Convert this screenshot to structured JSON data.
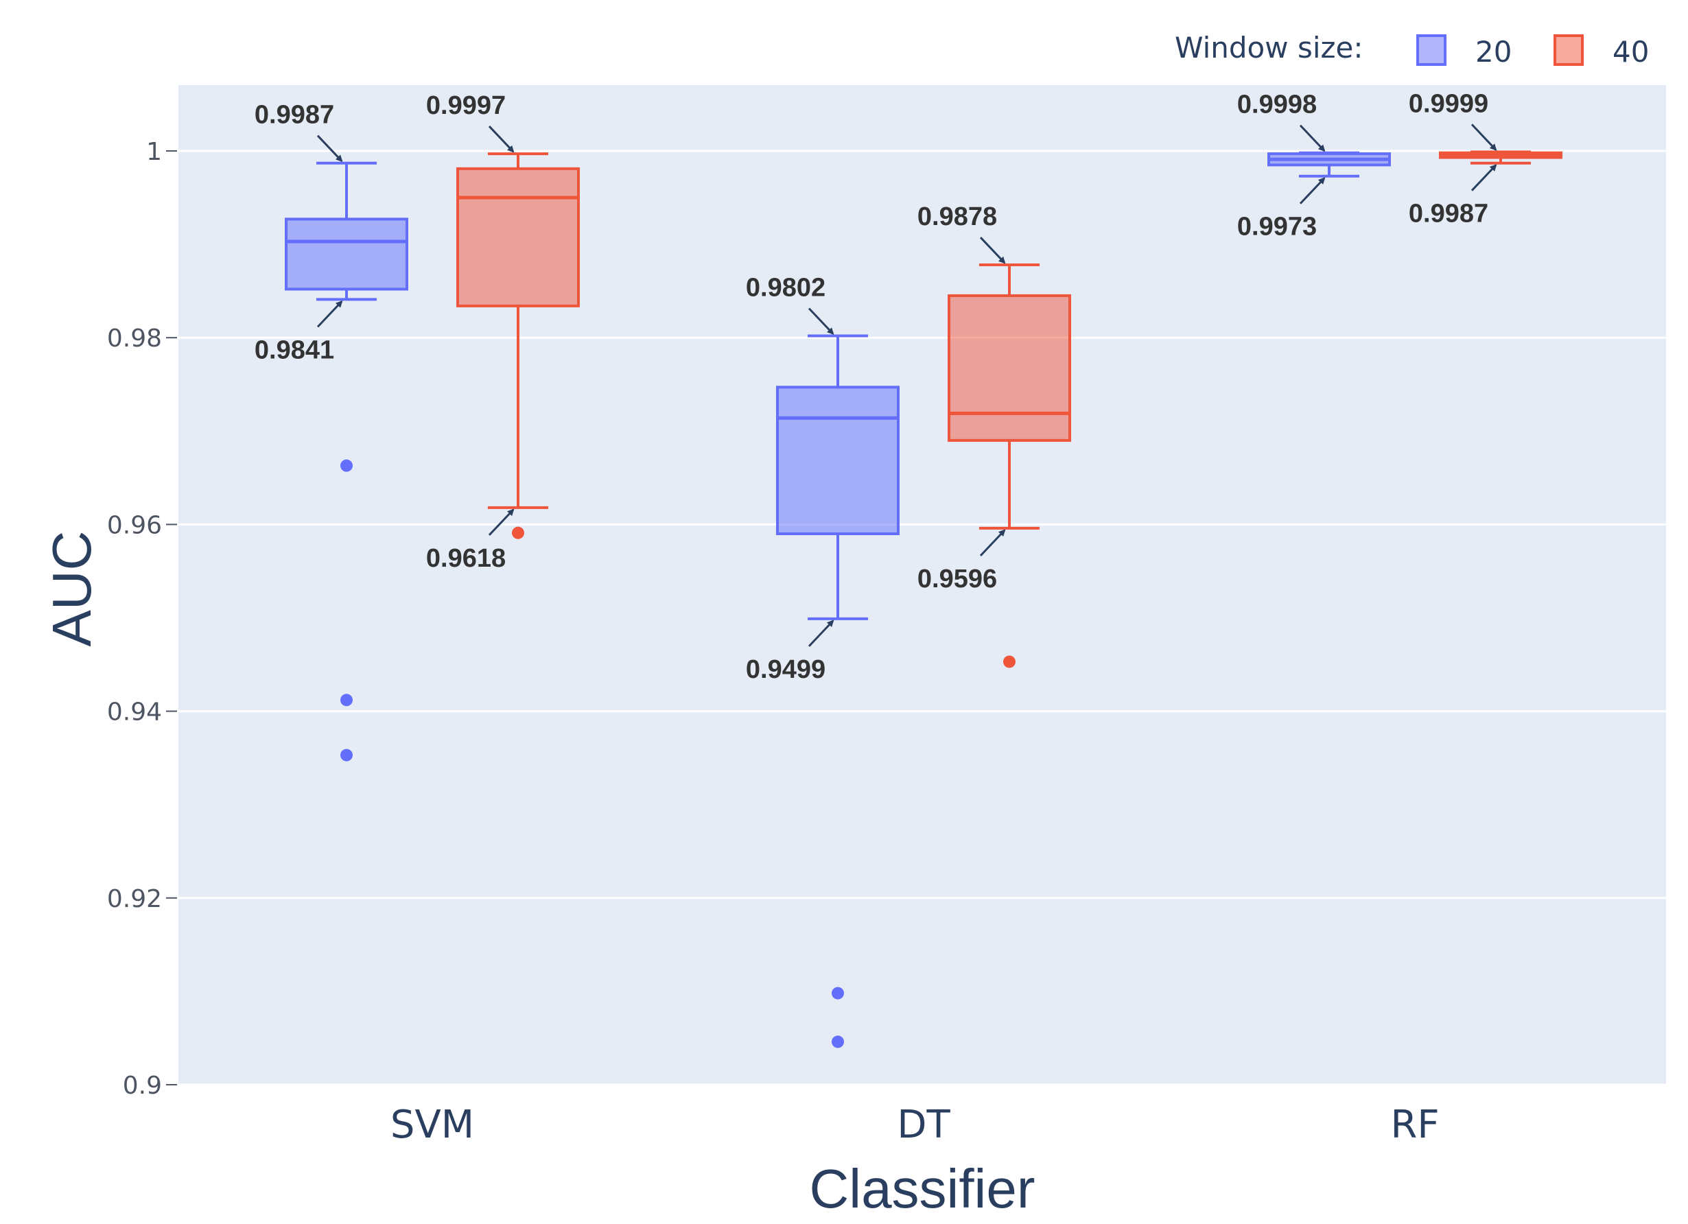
{
  "chart_data": {
    "type": "box",
    "xlabel": "Classifier",
    "ylabel": "AUC",
    "ylim": [
      0.9,
      1.007
    ],
    "yticks": [
      0.9,
      0.92,
      0.94,
      0.96,
      0.98,
      1
    ],
    "ytick_labels": [
      "0.9",
      "0.92",
      "0.94",
      "0.96",
      "0.98",
      "1"
    ],
    "categories": [
      "SVM",
      "DT",
      "RF"
    ],
    "legend": {
      "title": "Window size:",
      "position": "top-right",
      "orientation": "horizontal"
    },
    "series": [
      {
        "name": "20",
        "line_color": "#636efa",
        "fill_color": "rgba(99,110,250,0.5)",
        "boxes": [
          {
            "category": "SVM",
            "lower_whisker": 0.9841,
            "q1": 0.9852,
            "median": 0.9903,
            "q3": 0.9927,
            "upper_whisker": 0.9987,
            "outliers": [
              0.9663,
              0.9412,
              0.9353
            ]
          },
          {
            "category": "DT",
            "lower_whisker": 0.9499,
            "q1": 0.959,
            "median": 0.9714,
            "q3": 0.9747,
            "upper_whisker": 0.9802,
            "outliers": [
              0.9098,
              0.9046
            ]
          },
          {
            "category": "RF",
            "lower_whisker": 0.9973,
            "q1": 0.9985,
            "median": 0.9991,
            "q3": 0.9997,
            "upper_whisker": 0.9998,
            "outliers": []
          }
        ]
      },
      {
        "name": "40",
        "line_color": "#ef553b",
        "fill_color": "rgba(239,85,59,0.5)",
        "boxes": [
          {
            "category": "SVM",
            "lower_whisker": 0.9618,
            "q1": 0.9834,
            "median": 0.995,
            "q3": 0.9981,
            "upper_whisker": 0.9997,
            "outliers": [
              0.9591
            ]
          },
          {
            "category": "DT",
            "lower_whisker": 0.9596,
            "q1": 0.969,
            "median": 0.9719,
            "q3": 0.9845,
            "upper_whisker": 0.9878,
            "outliers": [
              0.9453
            ]
          },
          {
            "category": "RF",
            "lower_whisker": 0.9987,
            "q1": 0.9993,
            "median": 0.9996,
            "q3": 0.9998,
            "upper_whisker": 0.9999,
            "outliers": []
          }
        ]
      }
    ],
    "annotations": [
      {
        "text": "0.9987",
        "series": "20",
        "category": "SVM",
        "value": 0.9987,
        "side": "above"
      },
      {
        "text": "0.9841",
        "series": "20",
        "category": "SVM",
        "value": 0.9841,
        "side": "below"
      },
      {
        "text": "0.9997",
        "series": "40",
        "category": "SVM",
        "value": 0.9997,
        "side": "above"
      },
      {
        "text": "0.9618",
        "series": "40",
        "category": "SVM",
        "value": 0.9618,
        "side": "below"
      },
      {
        "text": "0.9802",
        "series": "20",
        "category": "DT",
        "value": 0.9802,
        "side": "above"
      },
      {
        "text": "0.9499",
        "series": "20",
        "category": "DT",
        "value": 0.9499,
        "side": "below"
      },
      {
        "text": "0.9878",
        "series": "40",
        "category": "DT",
        "value": 0.9878,
        "side": "above"
      },
      {
        "text": "0.9596",
        "series": "40",
        "category": "DT",
        "value": 0.9596,
        "side": "below"
      },
      {
        "text": "0.9998",
        "series": "20",
        "category": "RF",
        "value": 0.9998,
        "side": "above"
      },
      {
        "text": "0.9973",
        "series": "20",
        "category": "RF",
        "value": 0.9973,
        "side": "below"
      },
      {
        "text": "0.9999",
        "series": "40",
        "category": "RF",
        "value": 0.9999,
        "side": "above"
      },
      {
        "text": "0.9987",
        "series": "40",
        "category": "RF",
        "value": 0.9987,
        "side": "below"
      }
    ]
  }
}
